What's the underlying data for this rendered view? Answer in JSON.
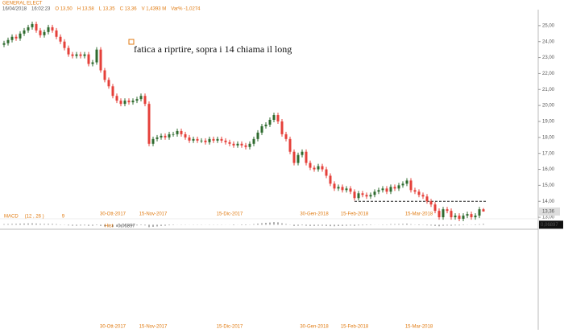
{
  "chart_data": {
    "type": "candlestick",
    "title": "GENERAL ELECT",
    "info": [
      "16/04/2018",
      "16:02:23",
      "O 13,50",
      "H 13,58",
      "L 13,35",
      "C 13,36",
      "V 1,4393 M",
      "Var% -1,0274"
    ],
    "annotation": "fatica a riprtire, sopra i 14 chiama il long",
    "level_line": 14,
    "last_value_label": "13,36",
    "up_color": "#2f6b2f",
    "down_color": "#e5403a",
    "ylim": [
      12.35,
      25.9
    ],
    "yticks": [
      {
        "value": 13,
        "label": "13,00"
      },
      {
        "value": 14,
        "label": "14,00"
      },
      {
        "value": 15,
        "label": "15,00"
      },
      {
        "value": 16,
        "label": "16,00"
      },
      {
        "value": 17,
        "label": "17,00"
      },
      {
        "value": 18,
        "label": "18,00"
      },
      {
        "value": 19,
        "label": "19,00"
      },
      {
        "value": 20,
        "label": "20,00"
      },
      {
        "value": 21,
        "label": "21,00"
      },
      {
        "value": 22,
        "label": "22,00"
      },
      {
        "value": 23,
        "label": "23,00"
      },
      {
        "value": 24,
        "label": "24,00"
      },
      {
        "value": 25,
        "label": "25,00"
      }
    ],
    "categories": [
      null,
      null,
      null,
      null,
      null,
      null,
      null,
      null,
      null,
      null,
      null,
      null,
      null,
      null,
      null,
      null,
      null,
      null,
      null,
      null,
      null,
      null,
      null,
      null,
      null,
      null,
      null,
      "30-Ott-2017",
      null,
      null,
      null,
      null,
      null,
      null,
      null,
      null,
      null,
      "15-Nov-2017",
      null,
      null,
      null,
      null,
      null,
      null,
      null,
      null,
      null,
      null,
      null,
      null,
      null,
      null,
      null,
      null,
      null,
      null,
      "15-Dic-2017",
      null,
      null,
      null,
      null,
      null,
      null,
      null,
      null,
      null,
      null,
      null,
      null,
      null,
      null,
      null,
      null,
      null,
      null,
      null,
      null,
      "30-Gen-2018",
      null,
      null,
      null,
      null,
      null,
      null,
      null,
      null,
      null,
      "15-Feb-2018",
      null,
      null,
      null,
      null,
      null,
      null,
      null,
      null,
      null,
      null,
      null,
      null,
      null,
      null,
      null,
      "15-Mar-2018",
      null,
      null,
      null,
      null,
      null,
      null,
      null,
      null,
      null,
      null,
      null,
      null,
      null,
      null,
      null,
      null
    ],
    "open": [
      23.8,
      23.9,
      24.1,
      24.3,
      24.2,
      24.5,
      24.7,
      24.9,
      25.1,
      24.7,
      24.4,
      24.6,
      24.9,
      24.7,
      24.3,
      24.0,
      23.6,
      23.2,
      23.1,
      23.2,
      23.1,
      23.2,
      22.6,
      22.7,
      23.5,
      22.2,
      21.6,
      21.2,
      20.6,
      20.3,
      20.1,
      20.3,
      20.2,
      20.3,
      20.4,
      20.6,
      20.1,
      17.6,
      17.9,
      18.0,
      18.1,
      18.0,
      18.2,
      18.2,
      18.4,
      18.2,
      18.0,
      17.8,
      17.9,
      17.8,
      17.8,
      17.7,
      17.9,
      17.8,
      17.9,
      17.8,
      17.7,
      17.6,
      17.5,
      17.6,
      17.5,
      17.4,
      17.6,
      17.9,
      18.3,
      18.7,
      18.8,
      19.1,
      19.4,
      19.0,
      18.2,
      17.9,
      17.1,
      16.4,
      16.9,
      17.1,
      16.4,
      16.1,
      16.0,
      16.2,
      16.0,
      15.6,
      15.1,
      14.8,
      14.9,
      14.7,
      14.8,
      14.6,
      14.2,
      14.5,
      14.4,
      14.3,
      14.4,
      14.6,
      14.7,
      14.8,
      14.6,
      14.9,
      14.8,
      15.0,
      15.1,
      15.3,
      14.7,
      14.6,
      14.4,
      14.3,
      14.0,
      13.8,
      13.4,
      13.0,
      13.5,
      13.4,
      13.0,
      13.1,
      12.9,
      13.1,
      13.2,
      13.0,
      13.1,
      13.5
    ],
    "high": [
      24.05,
      24.25,
      24.45,
      24.45,
      24.65,
      24.85,
      25.05,
      25.25,
      25.25,
      24.85,
      24.75,
      25.05,
      25.05,
      24.85,
      24.45,
      24.15,
      23.75,
      23.35,
      23.35,
      23.35,
      23.35,
      23.35,
      22.85,
      23.65,
      23.65,
      22.35,
      21.75,
      21.35,
      20.75,
      20.45,
      20.45,
      20.45,
      20.45,
      20.55,
      20.75,
      20.75,
      20.25,
      18.05,
      18.15,
      18.25,
      18.25,
      18.35,
      18.35,
      18.55,
      18.55,
      18.35,
      18.15,
      18.05,
      18.05,
      17.95,
      17.95,
      18.05,
      18.05,
      18.05,
      18.05,
      17.95,
      17.85,
      17.75,
      17.75,
      17.75,
      17.65,
      17.75,
      18.05,
      18.45,
      18.85,
      18.95,
      19.25,
      19.55,
      19.55,
      19.15,
      18.35,
      18.05,
      17.25,
      17.05,
      17.25,
      17.25,
      16.55,
      16.25,
      16.35,
      16.35,
      16.15,
      15.75,
      15.25,
      15.05,
      15.05,
      14.95,
      14.95,
      14.75,
      14.65,
      14.65,
      14.55,
      14.55,
      14.75,
      14.85,
      14.95,
      14.95,
      15.05,
      15.05,
      15.15,
      15.25,
      15.45,
      15.45,
      14.85,
      14.75,
      14.55,
      14.45,
      14.15,
      13.95,
      13.55,
      13.65,
      13.65,
      13.55,
      13.25,
      13.25,
      13.25,
      13.35,
      13.35,
      13.25,
      13.65,
      13.58
    ],
    "low": [
      23.65,
      23.75,
      23.95,
      24.05,
      24.05,
      24.35,
      24.55,
      24.75,
      24.55,
      24.25,
      24.25,
      24.45,
      24.55,
      24.15,
      23.85,
      23.45,
      23.05,
      22.95,
      22.95,
      22.95,
      22.95,
      22.45,
      22.45,
      22.55,
      22.05,
      21.45,
      21.05,
      20.45,
      20.15,
      19.95,
      19.95,
      20.05,
      20.05,
      20.15,
      20.25,
      19.95,
      17.45,
      17.45,
      17.75,
      17.85,
      17.85,
      17.85,
      18.05,
      18.05,
      18.05,
      17.85,
      17.65,
      17.65,
      17.65,
      17.65,
      17.55,
      17.55,
      17.65,
      17.65,
      17.65,
      17.55,
      17.45,
      17.35,
      17.35,
      17.35,
      17.25,
      17.25,
      17.45,
      17.75,
      18.15,
      18.55,
      18.65,
      18.95,
      18.85,
      18.05,
      17.75,
      16.95,
      16.25,
      16.25,
      16.75,
      16.25,
      15.95,
      15.85,
      15.85,
      15.85,
      15.45,
      14.95,
      14.65,
      14.65,
      14.55,
      14.55,
      14.45,
      14.05,
      14.05,
      14.25,
      14.15,
      14.15,
      14.25,
      14.45,
      14.55,
      14.45,
      14.45,
      14.65,
      14.65,
      14.85,
      14.95,
      14.55,
      14.45,
      14.25,
      14.15,
      13.85,
      13.65,
      13.25,
      12.85,
      12.85,
      13.25,
      12.85,
      12.85,
      12.75,
      12.75,
      12.95,
      12.85,
      12.85,
      12.95,
      13.35
    ],
    "close": [
      23.9,
      24.1,
      24.3,
      24.2,
      24.5,
      24.7,
      24.9,
      25.1,
      24.7,
      24.4,
      24.6,
      24.9,
      24.7,
      24.3,
      24.0,
      23.6,
      23.2,
      23.1,
      23.2,
      23.1,
      23.2,
      22.6,
      22.7,
      23.5,
      22.2,
      21.6,
      21.2,
      20.6,
      20.3,
      20.1,
      20.3,
      20.2,
      20.3,
      20.4,
      20.6,
      20.1,
      17.6,
      17.9,
      18.0,
      18.1,
      18.0,
      18.2,
      18.2,
      18.4,
      18.2,
      18.0,
      17.8,
      17.9,
      17.8,
      17.8,
      17.7,
      17.9,
      17.8,
      17.9,
      17.8,
      17.7,
      17.6,
      17.5,
      17.6,
      17.5,
      17.4,
      17.6,
      17.9,
      18.3,
      18.7,
      18.8,
      19.1,
      19.4,
      19.0,
      18.2,
      17.9,
      17.1,
      16.4,
      16.9,
      17.1,
      16.4,
      16.1,
      16.0,
      16.2,
      16.0,
      15.6,
      15.1,
      14.8,
      14.9,
      14.7,
      14.8,
      14.6,
      14.2,
      14.5,
      14.4,
      14.3,
      14.4,
      14.6,
      14.7,
      14.8,
      14.6,
      14.9,
      14.8,
      15.0,
      15.1,
      15.3,
      14.7,
      14.6,
      14.4,
      14.3,
      14.0,
      13.8,
      13.4,
      13.0,
      13.5,
      13.4,
      13.0,
      13.1,
      12.9,
      13.1,
      13.2,
      13.0,
      13.1,
      13.5,
      13.36
    ],
    "macd": {
      "name": "MACD",
      "params": "(12 , 26 )",
      "signal": "9",
      "hist_name": "Hist",
      "hist_label": "0,06897",
      "ylim": [
        -8.5,
        0.5
      ],
      "hist": [
        0.05,
        0.06,
        0.07,
        0.08,
        0.09,
        0.1,
        0.11,
        0.12,
        0.1,
        0.08,
        0.07,
        0.08,
        0.07,
        0.05,
        0.03,
        -0.02,
        -0.06,
        -0.08,
        -0.08,
        -0.07,
        -0.06,
        -0.09,
        -0.08,
        -0.04,
        -0.1,
        -0.14,
        -0.16,
        -0.18,
        -0.17,
        -0.15,
        -0.12,
        -0.1,
        -0.08,
        -0.06,
        -0.04,
        -0.06,
        -0.2,
        -0.18,
        -0.14,
        -0.1,
        -0.08,
        -0.05,
        -0.03,
        0.01,
        0.02,
        0.02,
        0.01,
        0.02,
        0.02,
        0.02,
        0.01,
        0.02,
        0.02,
        0.02,
        0.02,
        0.01,
        0.01,
        0,
        0.01,
        0,
        0,
        0.02,
        0.05,
        0.09,
        0.13,
        0.16,
        0.19,
        0.22,
        0.2,
        0.12,
        0.06,
        -0.02,
        -0.1,
        -0.08,
        -0.05,
        -0.08,
        -0.1,
        -0.1,
        -0.08,
        -0.08,
        -0.1,
        -0.12,
        -0.13,
        -0.11,
        -0.1,
        -0.08,
        -0.07,
        -0.09,
        -0.06,
        -0.05,
        -0.04,
        -0.03,
        -0.01,
        0.01,
        0.03,
        0.03,
        0.05,
        0.05,
        0.06,
        0.07,
        0.09,
        0.04,
        0.02,
        0,
        -0.02,
        -0.05,
        -0.07,
        -0.1,
        -0.13,
        -0.08,
        -0.07,
        -0.08,
        -0.06,
        -0.06,
        -0.04,
        -0.02,
        -0.02,
        0,
        0.04,
        0.06897
      ]
    }
  }
}
